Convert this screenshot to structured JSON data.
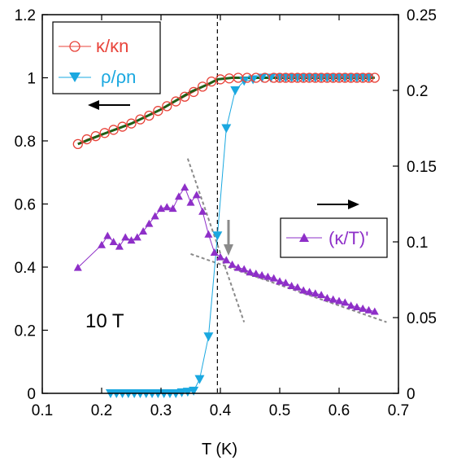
{
  "chart_data": {
    "type": "line",
    "xlabel": "T (K)",
    "xlim": [
      0.1,
      0.7
    ],
    "ylim_left": [
      0,
      1.2
    ],
    "ylim_right": [
      0,
      0.25
    ],
    "x_ticks": [
      "0.1",
      "0.2",
      "0.3",
      "0.4",
      "0.5",
      "0.6",
      "0.7"
    ],
    "left_ticks": [
      "0",
      "0.2",
      "0.4",
      "0.6",
      "0.8",
      "1",
      "1.2"
    ],
    "right_ticks": [
      "0",
      "0.05",
      "0.1",
      "0.15",
      "0.2",
      "0.25"
    ],
    "annotation": "10 T",
    "vertical_line_x": 0.395,
    "colors": {
      "kappa": "#e8433a",
      "fit": "#1f5e16",
      "rho": "#1aa8e0",
      "deriv": "#8e2fc8",
      "dashed_fit": "#8a8a8a"
    },
    "series": [
      {
        "name": "κ/κn",
        "axis": "left",
        "marker": "open-circle",
        "x": [
          0.16,
          0.175,
          0.19,
          0.205,
          0.22,
          0.235,
          0.25,
          0.265,
          0.28,
          0.295,
          0.31,
          0.325,
          0.34,
          0.355,
          0.37,
          0.385,
          0.4,
          0.415,
          0.43,
          0.445,
          0.46,
          0.475,
          0.49,
          0.5,
          0.51,
          0.52,
          0.53,
          0.54,
          0.55,
          0.56,
          0.57,
          0.58,
          0.59,
          0.6,
          0.61,
          0.62,
          0.63,
          0.64,
          0.65,
          0.66
        ],
        "y": [
          0.79,
          0.805,
          0.815,
          0.825,
          0.835,
          0.845,
          0.855,
          0.868,
          0.88,
          0.895,
          0.91,
          0.925,
          0.94,
          0.955,
          0.972,
          0.988,
          0.995,
          0.998,
          1.0,
          1.0,
          1.0,
          1.0,
          1.0,
          1.0,
          1.0,
          1.0,
          1.0,
          1.0,
          1.0,
          1.0,
          1.0,
          1.0,
          1.0,
          1.0,
          1.0,
          1.0,
          1.0,
          1.0,
          1.0,
          1.0
        ]
      },
      {
        "name": "fit",
        "axis": "left",
        "marker": "none",
        "x": [
          0.16,
          0.2,
          0.25,
          0.3,
          0.35,
          0.38,
          0.395,
          0.42,
          0.5,
          0.66
        ],
        "y": [
          0.79,
          0.82,
          0.855,
          0.9,
          0.955,
          0.98,
          0.995,
          1.0,
          1.0,
          1.0
        ]
      },
      {
        "name": "ρ/ρn",
        "axis": "left",
        "marker": "down-triangle",
        "x": [
          0.215,
          0.225,
          0.235,
          0.245,
          0.255,
          0.265,
          0.275,
          0.285,
          0.295,
          0.305,
          0.315,
          0.325,
          0.335,
          0.345,
          0.355,
          0.365,
          0.38,
          0.395,
          0.41,
          0.425,
          0.44,
          0.455,
          0.47,
          0.485,
          0.5,
          0.51,
          0.52,
          0.53,
          0.54,
          0.55,
          0.56,
          0.57,
          0.58,
          0.59,
          0.6,
          0.61,
          0.62,
          0.63,
          0.64,
          0.65
        ],
        "y": [
          0.0,
          0.0,
          0.0,
          0.0,
          0.0,
          0.0,
          0.0,
          0.0,
          0.0,
          0.0,
          0.0,
          0.0,
          0.003,
          0.005,
          0.008,
          0.045,
          0.18,
          0.5,
          0.84,
          0.96,
          0.99,
          0.995,
          1.0,
          1.0,
          1.0,
          1.0,
          1.0,
          1.0,
          1.0,
          1.0,
          1.0,
          1.0,
          1.0,
          1.0,
          1.0,
          1.0,
          1.0,
          1.0,
          1.0,
          1.0
        ]
      },
      {
        "name": "(κ/T)'",
        "axis": "right",
        "marker": "up-triangle",
        "x": [
          0.16,
          0.2,
          0.21,
          0.22,
          0.23,
          0.24,
          0.25,
          0.26,
          0.27,
          0.28,
          0.29,
          0.3,
          0.31,
          0.32,
          0.33,
          0.34,
          0.35,
          0.36,
          0.37,
          0.38,
          0.39,
          0.4,
          0.41,
          0.42,
          0.43,
          0.44,
          0.45,
          0.46,
          0.47,
          0.48,
          0.49,
          0.5,
          0.51,
          0.52,
          0.53,
          0.54,
          0.55,
          0.56,
          0.57,
          0.58,
          0.59,
          0.6,
          0.61,
          0.62,
          0.63,
          0.64,
          0.65,
          0.66
        ],
        "y": [
          0.083,
          0.098,
          0.104,
          0.1,
          0.097,
          0.103,
          0.101,
          0.103,
          0.107,
          0.112,
          0.117,
          0.122,
          0.123,
          0.122,
          0.13,
          0.136,
          0.126,
          0.131,
          0.12,
          0.105,
          0.093,
          0.09,
          0.088,
          0.085,
          0.083,
          0.082,
          0.08,
          0.079,
          0.078,
          0.077,
          0.076,
          0.074,
          0.073,
          0.071,
          0.07,
          0.068,
          0.067,
          0.066,
          0.065,
          0.063,
          0.062,
          0.061,
          0.06,
          0.058,
          0.057,
          0.056,
          0.055,
          0.054
        ]
      }
    ],
    "dashed_fits": [
      {
        "axis": "right",
        "x": [
          0.345,
          0.44
        ],
        "y": [
          0.155,
          0.047
        ]
      },
      {
        "axis": "right",
        "x": [
          0.35,
          0.68
        ],
        "y": [
          0.092,
          0.047
        ]
      }
    ]
  }
}
